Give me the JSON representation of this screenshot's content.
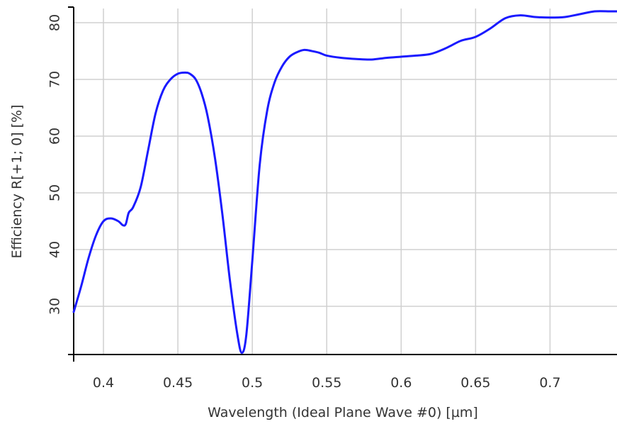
{
  "chart_data": {
    "type": "line",
    "title": "",
    "xlabel": "Wavelength (Ideal Plane Wave #0) [µm]",
    "ylabel": "Efficiency R[+1; 0] [%]",
    "xlim": [
      0.38,
      0.745
    ],
    "ylim": [
      21.5,
      82.5
    ],
    "xticks": [
      0.4,
      0.45,
      0.5,
      0.55,
      0.6,
      0.65,
      0.7
    ],
    "xtick_labels": [
      "0.4",
      "0.45",
      "0.5",
      "0.55",
      "0.6",
      "0.65",
      "0.7"
    ],
    "yticks": [
      30,
      40,
      50,
      60,
      70,
      80
    ],
    "ytick_labels": [
      "30",
      "40",
      "50",
      "60",
      "70",
      "80"
    ],
    "grid": true,
    "line_color": "#1a1aff",
    "series": [
      {
        "name": "",
        "x": [
          0.38,
          0.385,
          0.39,
          0.395,
          0.4,
          0.405,
          0.41,
          0.413,
          0.415,
          0.417,
          0.42,
          0.425,
          0.43,
          0.435,
          0.44,
          0.445,
          0.45,
          0.455,
          0.458,
          0.462,
          0.466,
          0.47,
          0.475,
          0.48,
          0.485,
          0.49,
          0.493,
          0.496,
          0.5,
          0.505,
          0.51,
          0.515,
          0.52,
          0.525,
          0.53,
          0.535,
          0.54,
          0.545,
          0.55,
          0.56,
          0.57,
          0.58,
          0.59,
          0.6,
          0.61,
          0.62,
          0.63,
          0.64,
          0.65,
          0.66,
          0.67,
          0.68,
          0.69,
          0.7,
          0.71,
          0.72,
          0.73,
          0.74,
          0.745
        ],
        "y": [
          29.0,
          33.5,
          38.5,
          42.5,
          45.0,
          45.5,
          45.0,
          44.3,
          44.5,
          46.5,
          47.5,
          51.0,
          57.5,
          64.0,
          68.0,
          70.0,
          71.0,
          71.2,
          71.0,
          70.0,
          67.5,
          63.5,
          56.0,
          46.0,
          34.5,
          25.0,
          21.8,
          25.0,
          38.0,
          55.0,
          64.5,
          69.5,
          72.3,
          74.0,
          74.8,
          75.2,
          75.0,
          74.7,
          74.2,
          73.8,
          73.6,
          73.5,
          73.8,
          74.0,
          74.2,
          74.5,
          75.5,
          76.8,
          77.5,
          79.0,
          80.8,
          81.3,
          81.0,
          80.9,
          81.0,
          81.5,
          82.0,
          82.0,
          82.0
        ]
      }
    ]
  }
}
